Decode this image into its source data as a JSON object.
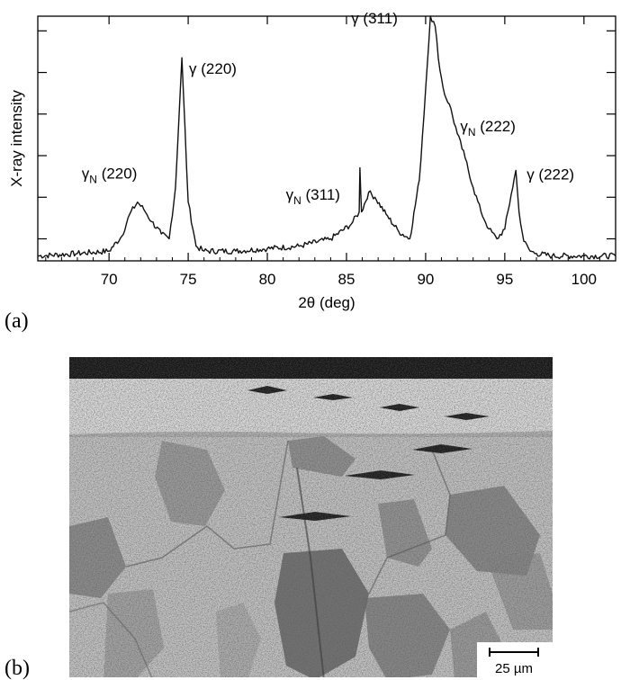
{
  "panel_a": {
    "label": "(a)"
  },
  "panel_b": {
    "label": "(b)"
  },
  "chart_data": {
    "type": "line",
    "xlabel": "2θ  (deg)",
    "ylabel": "X-ray intensity",
    "xlim": [
      65.5,
      102
    ],
    "ylim": [
      0,
      100
    ],
    "xticks": [
      70,
      75,
      80,
      85,
      90,
      95,
      100
    ],
    "xtick_labels": [
      "70",
      "75",
      "80",
      "85",
      "90",
      "95",
      "100"
    ],
    "yticks": [
      9,
      26,
      43,
      60,
      77,
      94
    ],
    "ytick_labels": [
      "",
      "",
      "",
      "",
      "",
      ""
    ],
    "grid": false,
    "series": [
      {
        "x": [
          65.5,
          68,
          70,
          70.8,
          71.3,
          71.8,
          72.2,
          72.7,
          73.3,
          73.8,
          74.2,
          74.6,
          75.0,
          75.5,
          76,
          78,
          80,
          82,
          84,
          85.3,
          85.8,
          85.85,
          85.95,
          86.4,
          86.8,
          87.5,
          88.3,
          89.0,
          89.6,
          90.0,
          90.3,
          90.6,
          90.9,
          91.2,
          91.5,
          92.0,
          92.5,
          93.0,
          93.5,
          94.0,
          94.5,
          95.0,
          95.4,
          95.7,
          95.9,
          96.2,
          96.6,
          97,
          98,
          100,
          102
        ],
        "y": [
          2,
          3,
          4,
          10,
          19,
          24,
          21,
          16,
          11,
          9,
          30,
          83,
          24,
          6,
          4,
          4,
          5,
          6,
          9,
          15,
          20,
          38,
          20,
          28,
          26,
          19,
          12,
          9,
          33,
          70,
          100,
          96,
          78,
          68,
          64,
          52,
          42,
          30,
          20,
          13,
          9,
          13,
          27,
          37,
          20,
          8,
          4,
          3,
          2,
          2,
          2
        ]
      }
    ],
    "annotations": [
      {
        "text": "γN (220)",
        "x": 71.8,
        "y": 24
      },
      {
        "text": "γ (220)",
        "x": 74.6,
        "y": 83
      },
      {
        "text": "γN (311)",
        "x": 86.4,
        "y": 28
      },
      {
        "text": "γ (311)",
        "x": 90.3,
        "y": 100
      },
      {
        "text": "γN (222)",
        "x": 91.5,
        "y": 64
      },
      {
        "text": "γ (222)",
        "x": 95.7,
        "y": 37
      }
    ]
  },
  "micrograph": {
    "scale_bar_label": "25 µm"
  }
}
